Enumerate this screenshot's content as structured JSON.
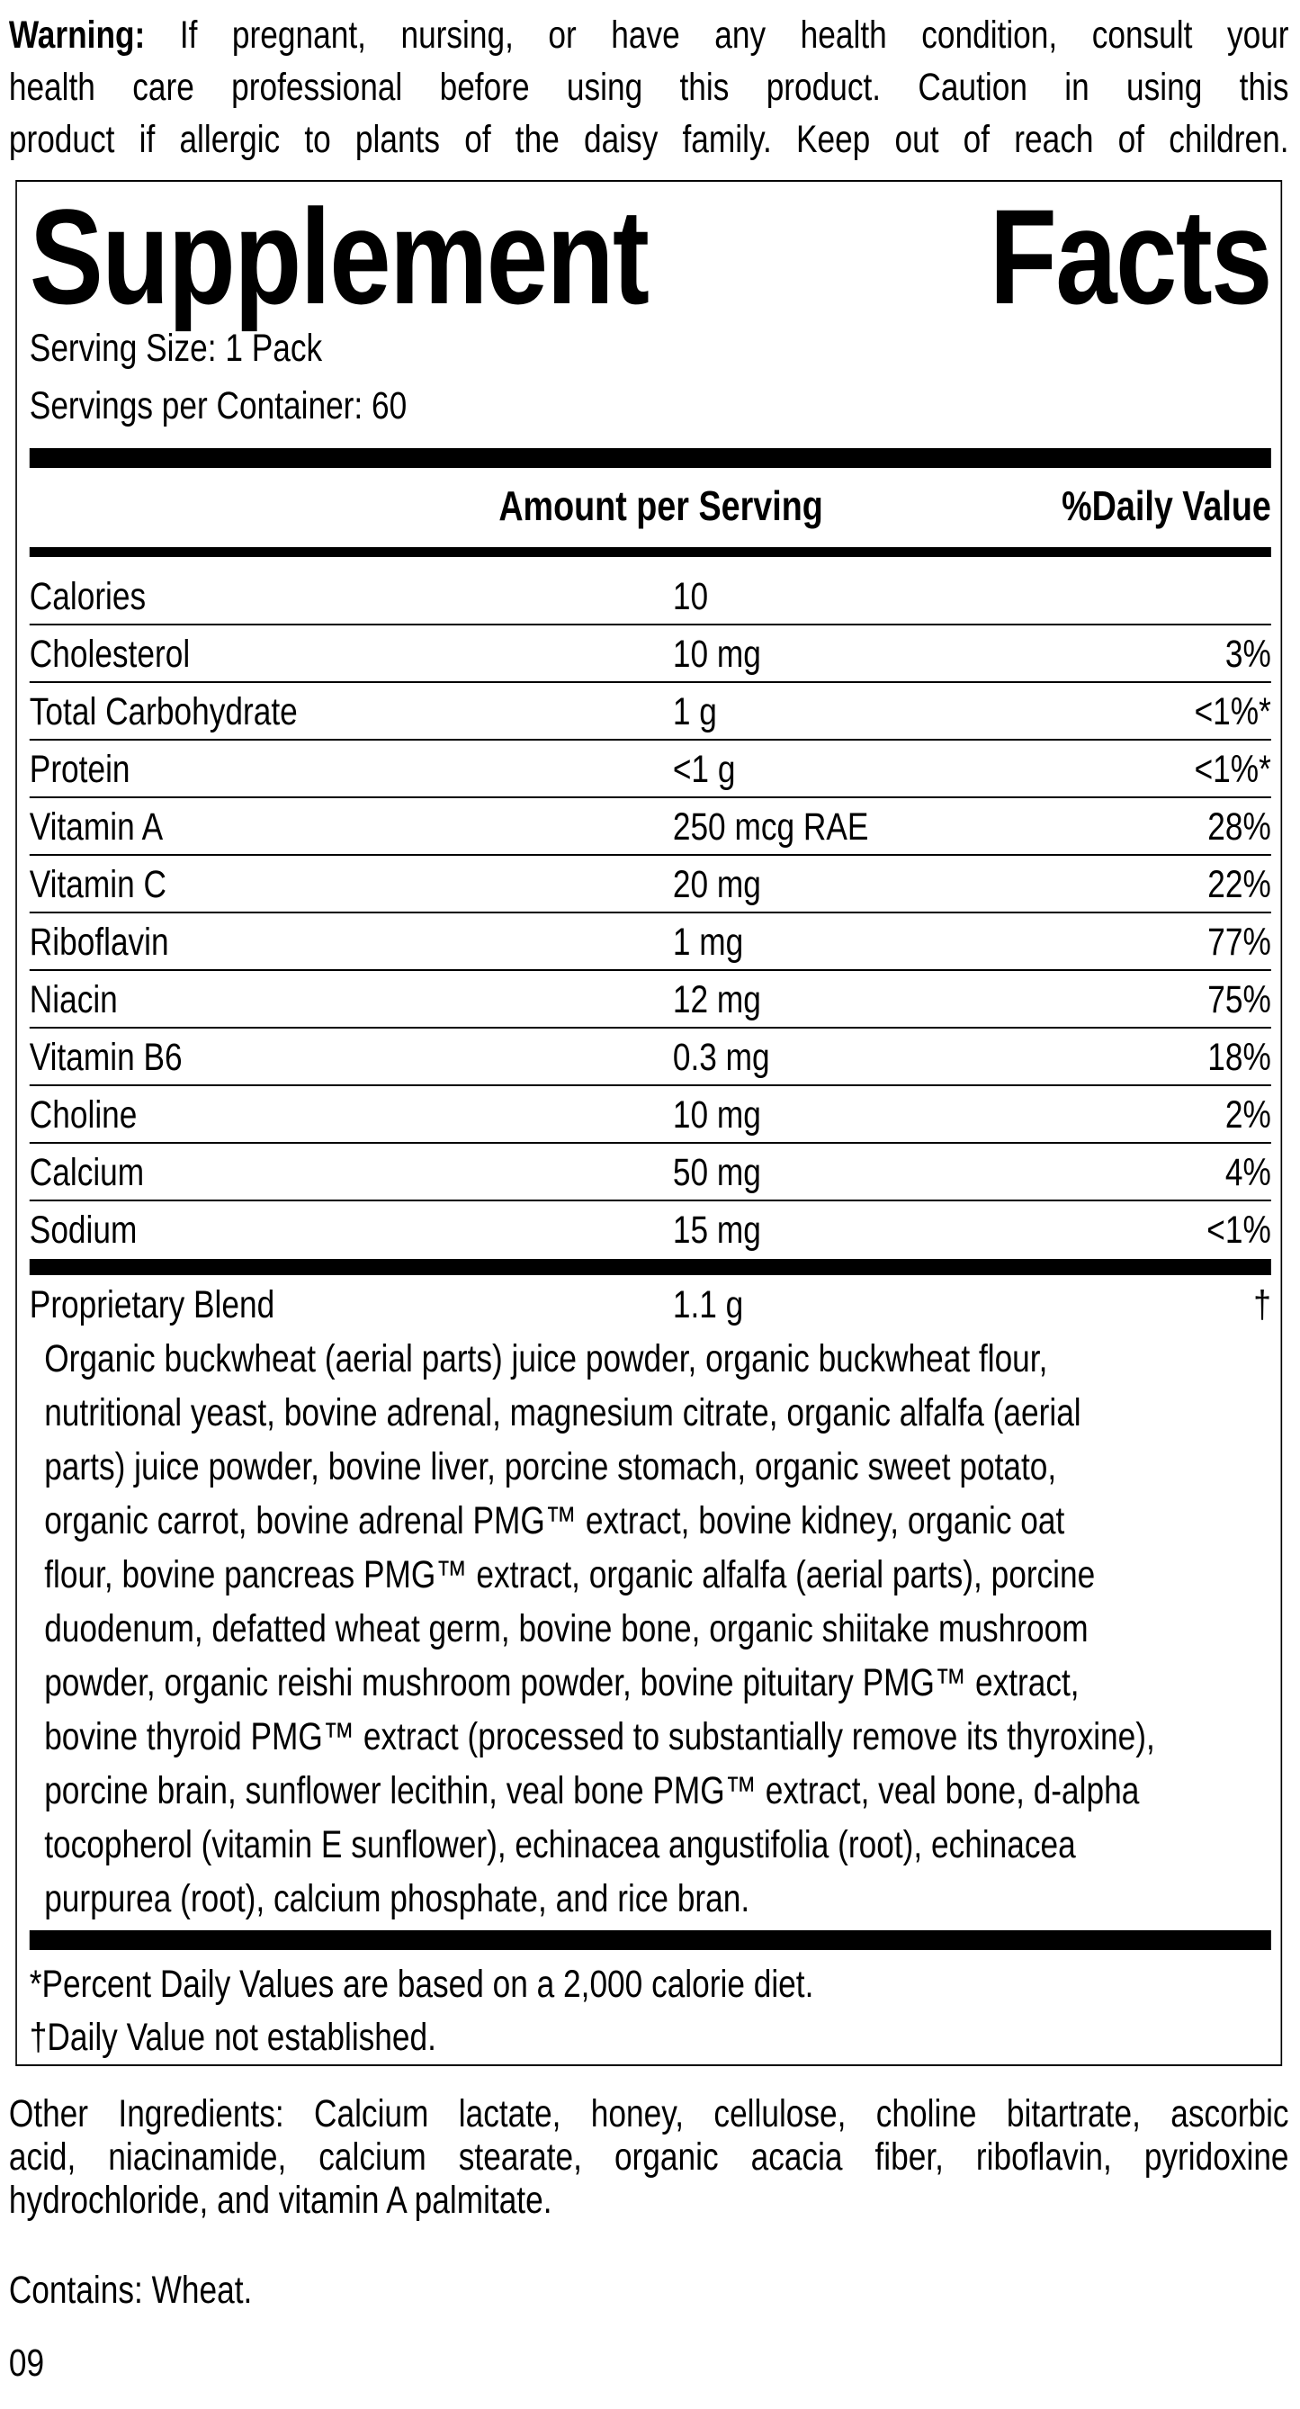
{
  "warning": {
    "label": "Warning:",
    "lines": [
      " If pregnant, nursing, or have any health condition, consult your",
      "health care professional before using this product. Caution in using this",
      "product if allergic to plants of the daisy family. Keep out of reach of children."
    ]
  },
  "facts": {
    "title_words": [
      "Supplement",
      "Facts"
    ],
    "serving_size": "Serving Size: 1 Pack",
    "servings_per_container": "Servings per Container: 60",
    "header": {
      "amount": "Amount per Serving",
      "dv": "%Daily Value"
    },
    "rows": [
      {
        "name": "Calories",
        "amount": "10",
        "dv": ""
      },
      {
        "name": "Cholesterol",
        "amount": "10 mg",
        "dv": "3%"
      },
      {
        "name": "Total Carbohydrate",
        "amount": "1 g",
        "dv": "<1%*"
      },
      {
        "name": "Protein",
        "amount": "<1 g",
        "dv": "<1%*"
      },
      {
        "name": "Vitamin A",
        "amount": "250 mcg RAE",
        "dv": "28%"
      },
      {
        "name": "Vitamin C",
        "amount": "20 mg",
        "dv": "22%"
      },
      {
        "name": "Riboflavin",
        "amount": "1 mg",
        "dv": "77%"
      },
      {
        "name": "Niacin",
        "amount": "12 mg",
        "dv": "75%"
      },
      {
        "name": "Vitamin B6",
        "amount": "0.3 mg",
        "dv": "18%"
      },
      {
        "name": "Choline",
        "amount": "10 mg",
        "dv": "2%"
      },
      {
        "name": "Calcium",
        "amount": "50 mg",
        "dv": "4%"
      },
      {
        "name": "Sodium",
        "amount": "15 mg",
        "dv": "<1%"
      }
    ],
    "blend": {
      "name": "Proprietary Blend",
      "amount": "1.1 g",
      "dv": "†"
    },
    "blend_ingredients": [
      "Organic buckwheat (aerial parts) juice powder, organic buckwheat flour,",
      "nutritional yeast, bovine adrenal, magnesium citrate, organic alfalfa (aerial",
      "parts) juice powder, bovine liver, porcine stomach, organic sweet potato,",
      "organic carrot, bovine adrenal PMG™ extract, bovine kidney, organic oat",
      "flour, bovine pancreas PMG™ extract, organic alfalfa (aerial parts), porcine",
      "duodenum, defatted wheat germ, bovine bone, organic shiitake mushroom",
      "powder, organic reishi mushroom powder, bovine pituitary PMG™ extract,",
      "bovine thyroid PMG™ extract (processed to substantially remove its thyroxine),",
      "porcine brain, sunflower lecithin, veal bone PMG™ extract, veal bone, d-alpha",
      "tocopherol (vitamin E sunflower), echinacea angustifolia (root), echinacea",
      "purpurea (root), calcium phosphate, and rice bran."
    ],
    "footnotes": [
      "*Percent Daily Values are based on a 2,000 calorie diet.",
      "†Daily Value not established."
    ]
  },
  "other_ingredients": [
    "Other Ingredients: Calcium lactate, honey, cellulose, choline bitartrate, ascorbic",
    "acid, niacinamide, calcium stearate, organic acacia fiber, riboflavin, pyridoxine",
    "hydrochloride, and vitamin A palmitate."
  ],
  "contains": "Contains: Wheat.",
  "code": "09"
}
